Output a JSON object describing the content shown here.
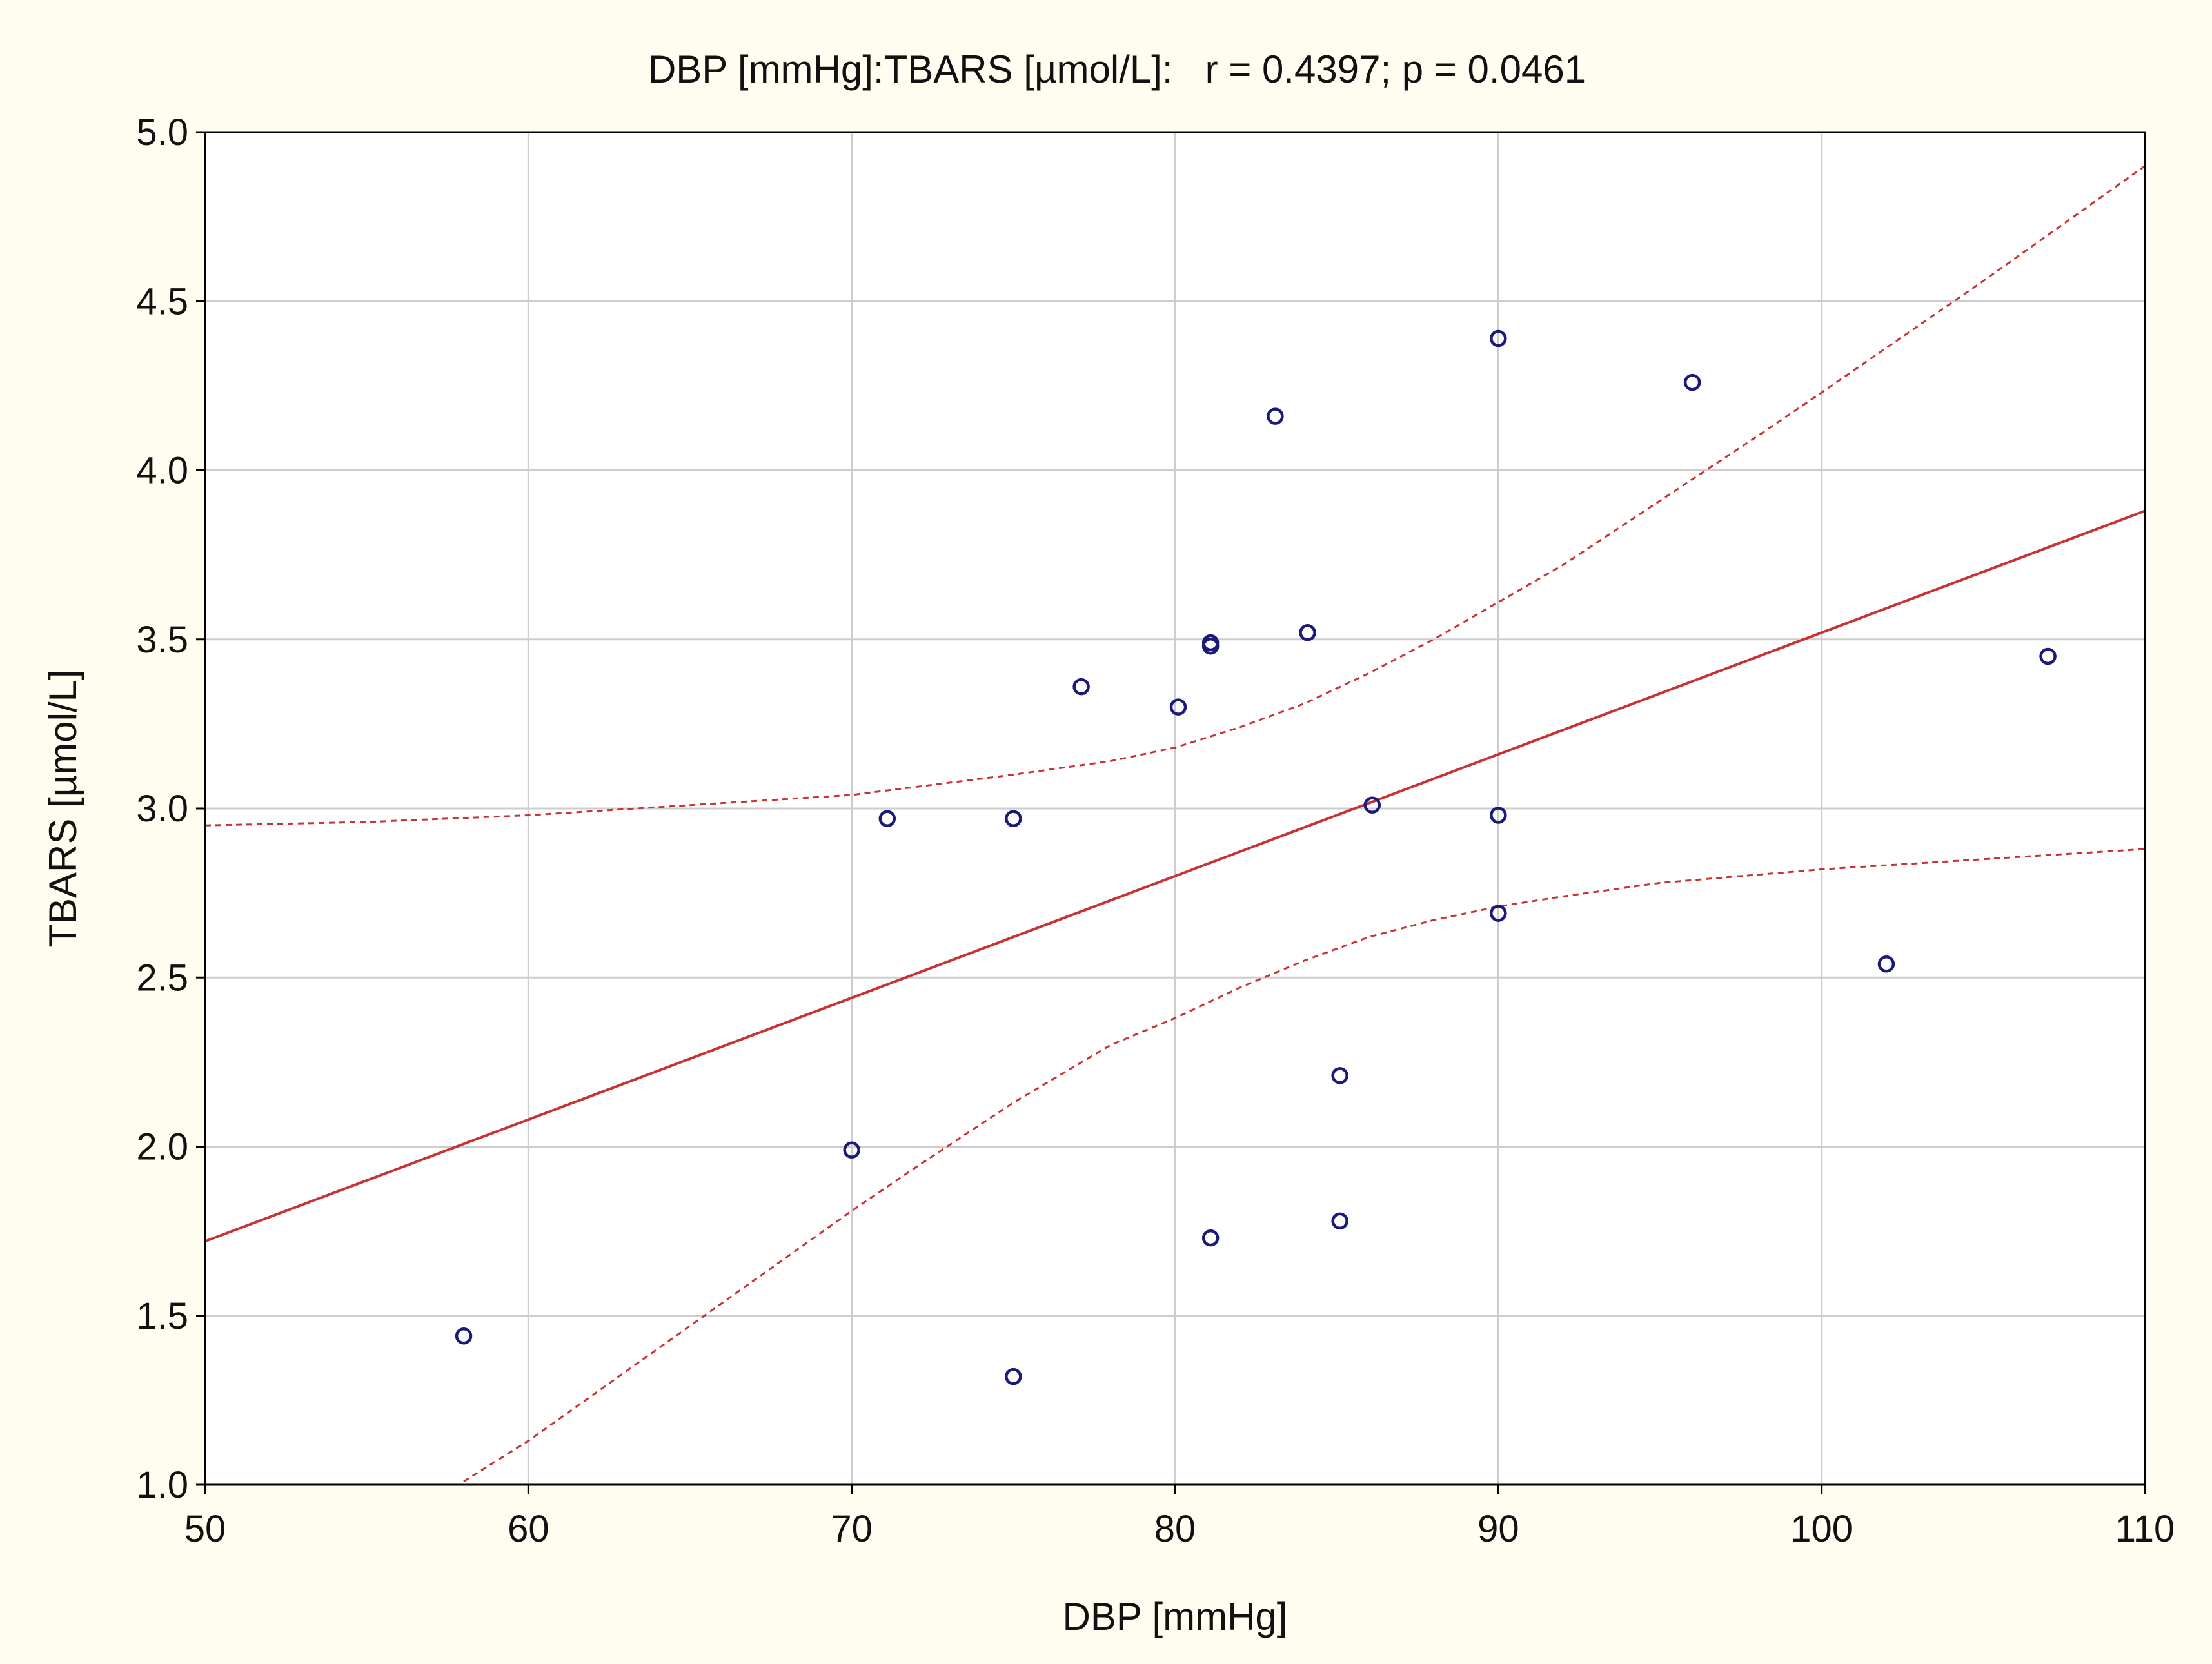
{
  "chart_data": {
    "type": "scatter",
    "title": "DBP [mmHg]:TBARS [µmol/L]:   r = 0.4397; p = 0.0461",
    "xlabel": "DBP [mmHg]",
    "ylabel": "TBARS [µmol/L]",
    "xlim": [
      50,
      110
    ],
    "ylim": [
      1.0,
      5.0
    ],
    "xticks": [
      50,
      60,
      70,
      80,
      90,
      100,
      110
    ],
    "xtick_labels": [
      "50",
      "60",
      "70",
      "80",
      "90",
      "100",
      "110"
    ],
    "yticks": [
      1.0,
      1.5,
      2.0,
      2.5,
      3.0,
      3.5,
      4.0,
      4.5,
      5.0
    ],
    "ytick_labels": [
      "1.0",
      "1.5",
      "2.0",
      "2.5",
      "3.0",
      "3.5",
      "4.0",
      "4.5",
      "5.0"
    ],
    "grid": true,
    "series": [
      {
        "marker": "open-circle",
        "color": "#1a1a7a",
        "points": [
          {
            "x": 58,
            "y": 1.44
          },
          {
            "x": 70,
            "y": 1.99
          },
          {
            "x": 71.1,
            "y": 2.97
          },
          {
            "x": 75,
            "y": 2.97
          },
          {
            "x": 75,
            "y": 1.32
          },
          {
            "x": 77.1,
            "y": 3.36
          },
          {
            "x": 80.1,
            "y": 3.3
          },
          {
            "x": 81.1,
            "y": 3.48
          },
          {
            "x": 81.1,
            "y": 3.49
          },
          {
            "x": 81.1,
            "y": 1.73
          },
          {
            "x": 83.1,
            "y": 4.16
          },
          {
            "x": 84.1,
            "y": 3.52
          },
          {
            "x": 85.1,
            "y": 2.21
          },
          {
            "x": 85.1,
            "y": 1.78
          },
          {
            "x": 86.1,
            "y": 3.01
          },
          {
            "x": 90,
            "y": 4.39
          },
          {
            "x": 90,
            "y": 2.98
          },
          {
            "x": 90,
            "y": 2.69
          },
          {
            "x": 96,
            "y": 4.26
          },
          {
            "x": 102,
            "y": 2.54
          },
          {
            "x": 107,
            "y": 3.45
          }
        ]
      }
    ],
    "regression_line": {
      "style": "solid",
      "color": "#c83232",
      "x": [
        50,
        110
      ],
      "y": [
        1.72,
        3.88
      ]
    },
    "confidence_bands": {
      "style": "dashed",
      "color": "#c83232",
      "upper": {
        "x": [
          50,
          55,
          60,
          65,
          70,
          75,
          78,
          80,
          82,
          84,
          86,
          88,
          90,
          92,
          95,
          98,
          100,
          105,
          110
        ],
        "y": [
          2.95,
          2.96,
          2.98,
          3.01,
          3.04,
          3.1,
          3.14,
          3.18,
          3.24,
          3.31,
          3.4,
          3.5,
          3.61,
          3.72,
          3.91,
          4.1,
          4.23,
          4.56,
          4.9
        ]
      },
      "lower": {
        "x": [
          58,
          60,
          65,
          70,
          72,
          75,
          78,
          80,
          82,
          84,
          86,
          88,
          90,
          92,
          95,
          100,
          105,
          110
        ],
        "y": [
          1.01,
          1.13,
          1.47,
          1.81,
          1.94,
          2.13,
          2.3,
          2.38,
          2.47,
          2.55,
          2.62,
          2.67,
          2.71,
          2.74,
          2.78,
          2.82,
          2.85,
          2.88
        ]
      }
    },
    "legend": "none"
  }
}
